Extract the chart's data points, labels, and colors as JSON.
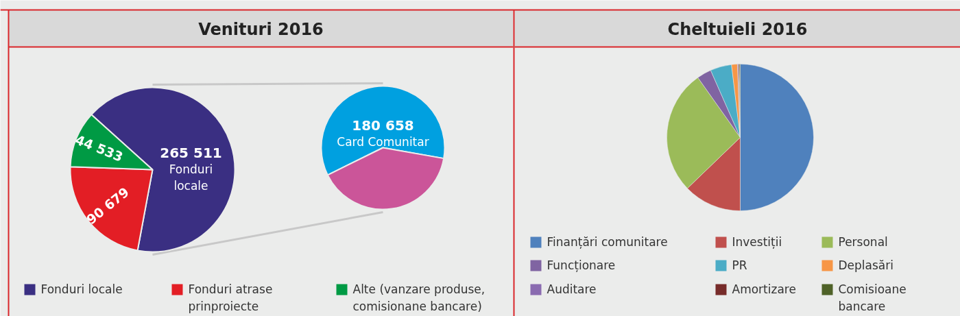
{
  "chart_data": [
    {
      "type": "pie",
      "title": "Venituri 2016",
      "categories": [
        "Fonduri locale",
        "Fonduri atrase prinproiecte",
        "Alte (vanzare produse, comisionane bancare)"
      ],
      "values": [
        265511,
        90679,
        44533
      ],
      "colors": [
        "#3a2f82",
        "#e31e25",
        "#009a44"
      ],
      "value_labels": [
        "265 511",
        "90 679",
        "44 533"
      ],
      "legend": "bottom"
    },
    {
      "type": "pie",
      "categories": [
        "Card Comunitar",
        null
      ],
      "values": [
        180658,
        120000
      ],
      "colors": [
        "#00a0e0",
        "#cb5599"
      ],
      "value_labels": [
        "180 658",
        null
      ]
    },
    {
      "type": "pie",
      "title": "Cheltuieli 2016",
      "categories": [
        "Finanțări comunitare",
        "Investiții",
        "Personal",
        "Funcționare",
        "PR",
        "Deplasări",
        "Auditare",
        "Amortizare",
        "Comisioane bancare"
      ],
      "values": [
        50,
        12.8,
        27.4,
        3.2,
        4.7,
        1.3,
        0.2,
        0.2,
        0.2
      ],
      "colors": [
        "#4f81bd",
        "#c0504d",
        "#9bbb59",
        "#8064a2",
        "#4bacc6",
        "#f79646",
        "#8a6bb0",
        "#772c2a",
        "#4f6228"
      ],
      "legend": "bottom"
    }
  ]
}
